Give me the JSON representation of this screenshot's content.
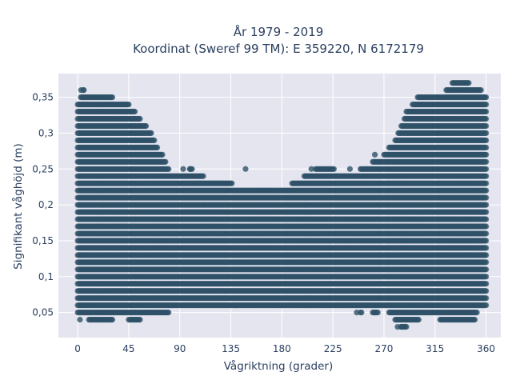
{
  "chart_data": {
    "type": "scatter",
    "title_lines": [
      "År 1979 - 2019",
      "Koordinat (Sweref 99 TM): E 359220, N 6172179"
    ],
    "xlabel": "Vågriktning (grader)",
    "ylabel": "Signifikant våghöjd (m)",
    "xlim": [
      -17,
      373
    ],
    "ylim": [
      0.015,
      0.383
    ],
    "x_ticks": [
      0,
      45,
      90,
      135,
      180,
      225,
      270,
      315,
      360
    ],
    "x_tick_labels": [
      "0",
      "45",
      "90",
      "135",
      "180",
      "225",
      "270",
      "315",
      "360"
    ],
    "y_ticks": [
      0.05,
      0.1,
      0.15,
      0.2,
      0.25,
      0.3,
      0.35
    ],
    "y_tick_labels": [
      "0,05",
      "0,1",
      "0,15",
      "0,2",
      "0,25",
      "0,3",
      "0,35"
    ],
    "grid": true,
    "plot_bgcolor": "#e5e5f0",
    "marker_color": "#2f5268",
    "text_color": "#2a3f5f",
    "height_step": 0.01,
    "envelope": {
      "direction": [
        0,
        5,
        10,
        20,
        30,
        40,
        45,
        50,
        55,
        60,
        65,
        70,
        75,
        80,
        90,
        100,
        120,
        135,
        150,
        180,
        210,
        225,
        240,
        250,
        255,
        260,
        265,
        270,
        275,
        280,
        285,
        290,
        295,
        300,
        310,
        320,
        330,
        340,
        345,
        350,
        355,
        360
      ],
      "max_height": [
        0.34,
        0.36,
        0.35,
        0.35,
        0.35,
        0.34,
        0.34,
        0.33,
        0.32,
        0.31,
        0.3,
        0.28,
        0.27,
        0.25,
        0.24,
        0.25,
        0.23,
        0.23,
        0.22,
        0.22,
        0.25,
        0.25,
        0.24,
        0.25,
        0.25,
        0.26,
        0.26,
        0.27,
        0.28,
        0.29,
        0.31,
        0.33,
        0.34,
        0.35,
        0.35,
        0.35,
        0.37,
        0.37,
        0.37,
        0.36,
        0.36,
        0.35
      ],
      "min_height": [
        0.05,
        0.05,
        0.04,
        0.04,
        0.04,
        0.05,
        0.04,
        0.04,
        0.04,
        0.05,
        0.05,
        0.05,
        0.05,
        0.05,
        0.06,
        0.06,
        0.06,
        0.06,
        0.06,
        0.06,
        0.06,
        0.06,
        0.06,
        0.05,
        0.06,
        0.05,
        0.05,
        0.06,
        0.05,
        0.04,
        0.03,
        0.03,
        0.04,
        0.04,
        0.05,
        0.04,
        0.04,
        0.04,
        0.04,
        0.04,
        0.06,
        0.06
      ]
    },
    "outlier_points": [
      {
        "x": 2,
        "y": 0.04
      },
      {
        "x": 5,
        "y": 0.36
      },
      {
        "x": 3,
        "y": 0.36
      },
      {
        "x": 93,
        "y": 0.25
      },
      {
        "x": 99,
        "y": 0.25
      },
      {
        "x": 107,
        "y": 0.23
      },
      {
        "x": 148,
        "y": 0.25
      },
      {
        "x": 206,
        "y": 0.25
      },
      {
        "x": 240,
        "y": 0.25
      },
      {
        "x": 282,
        "y": 0.03
      },
      {
        "x": 285,
        "y": 0.03
      },
      {
        "x": 283,
        "y": 0.04
      },
      {
        "x": 246,
        "y": 0.05
      },
      {
        "x": 140,
        "y": 0.06
      },
      {
        "x": 180,
        "y": 0.06
      },
      {
        "x": 262,
        "y": 0.27
      }
    ]
  }
}
